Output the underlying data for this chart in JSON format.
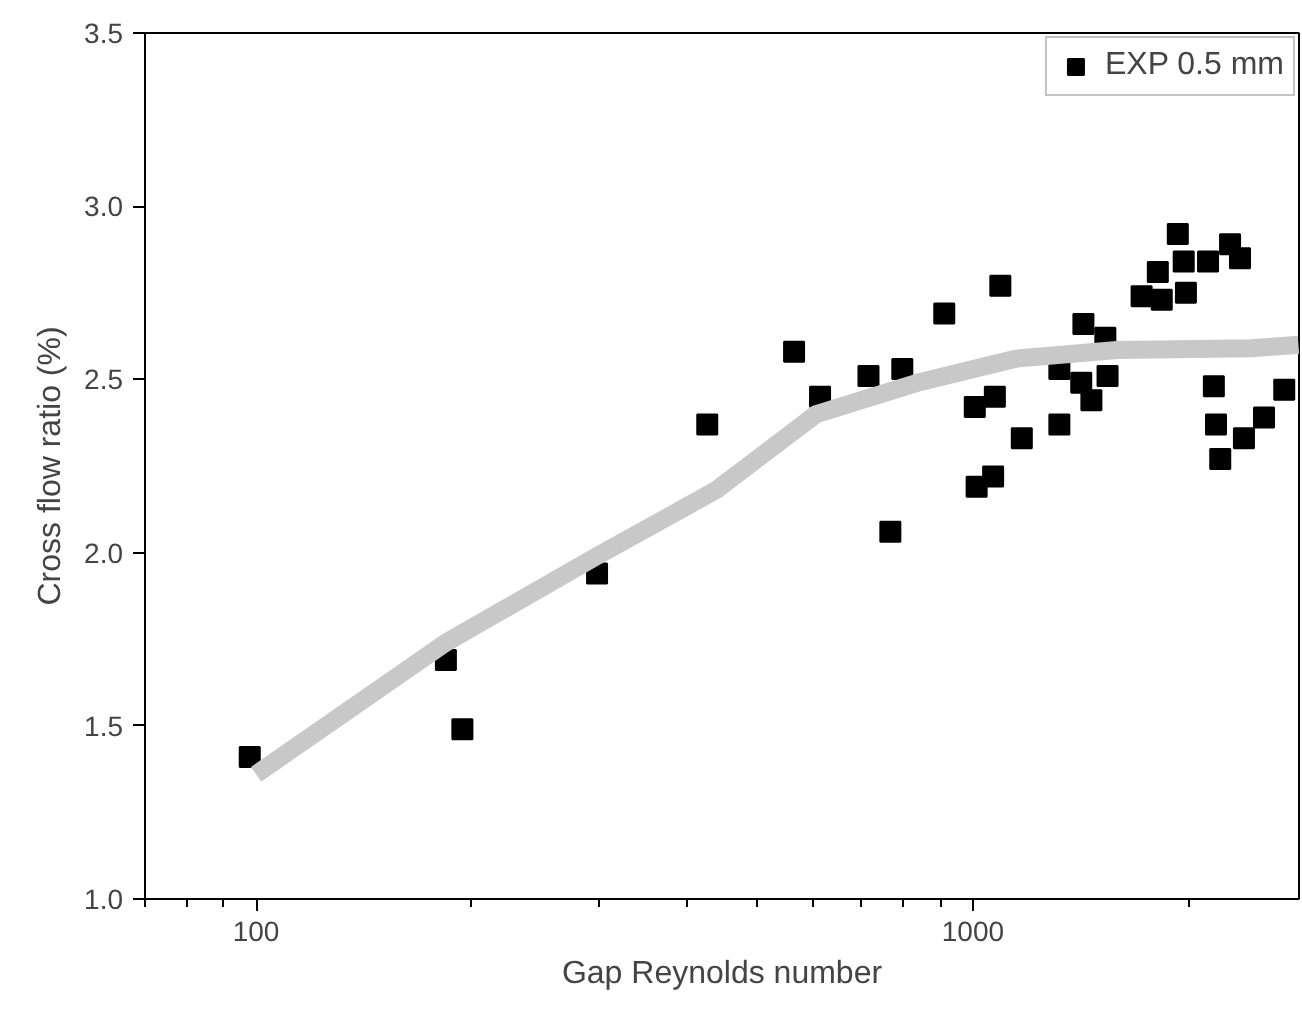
{
  "chart_data": {
    "type": "scatter",
    "xlabel": "Gap Reynolds number",
    "ylabel": "Cross flow ratio (%)",
    "log": "x",
    "xlim": [
      70,
      2850
    ],
    "xticks": [
      100,
      1000
    ],
    "ylim": [
      1.0,
      3.5
    ],
    "yticks": [
      {
        "value": 1.0,
        "label": "1.0"
      },
      {
        "value": 1.5,
        "label": "1.5"
      },
      {
        "value": 2.0,
        "label": "2.0"
      },
      {
        "value": 2.5,
        "label": "2.5"
      },
      {
        "value": 3.0,
        "label": "3.0"
      },
      {
        "value": 3.5,
        "label": "3.5"
      }
    ],
    "grid": false,
    "legend": "top right",
    "series": [
      {
        "name": "EXP 0.5 mm",
        "color": "#000000",
        "marker": "square",
        "x": [
          98,
          184,
          194,
          299,
          426,
          563,
          612,
          715,
          797,
          767,
          912,
          1092,
          1006,
          1073,
          1170,
          1012,
          1067,
          1320,
          1320,
          1426,
          1530,
          1416,
          1541,
          1463,
          1719,
          1834,
          1811,
          1982,
          1968,
          1931,
          2128,
          2284,
          2358,
          2168,
          2183,
          2213,
          2388,
          2547,
          2718
        ],
        "values": [
          1.41,
          1.69,
          1.49,
          1.94,
          2.37,
          2.58,
          2.45,
          2.51,
          2.53,
          2.06,
          2.69,
          2.77,
          2.42,
          2.45,
          2.33,
          2.19,
          2.22,
          2.53,
          2.37,
          2.66,
          2.62,
          2.49,
          2.51,
          2.44,
          2.74,
          2.73,
          2.81,
          2.75,
          2.84,
          2.92,
          2.84,
          2.89,
          2.85,
          2.48,
          2.37,
          2.27,
          2.33,
          2.39,
          2.47
        ]
      },
      {
        "color": "#c8c8c8",
        "type": "line",
        "x": [
          100,
          184,
          299,
          438,
          605,
          836,
          1150,
          1590,
          2450,
          2845
        ],
        "values": [
          1.36,
          1.74,
          1.99,
          2.18,
          2.4,
          2.49,
          2.56,
          2.585,
          2.59,
          2.6
        ]
      }
    ]
  }
}
